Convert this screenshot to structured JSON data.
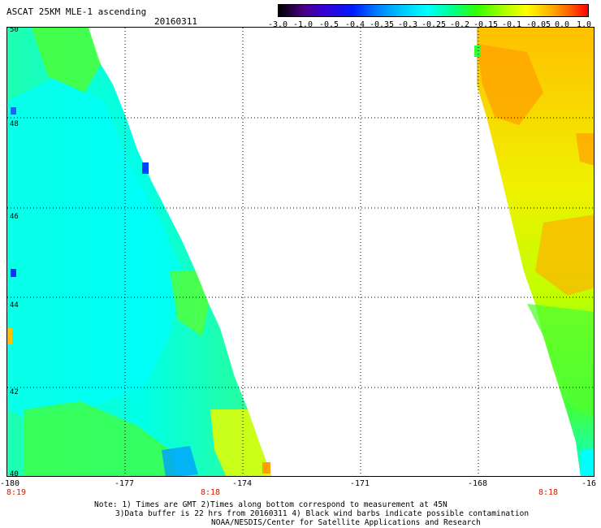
{
  "header": {
    "title": "ASCAT 25KM MLE-1 ascending",
    "date": "20160311"
  },
  "colorbar": {
    "labels": [
      "-3.0",
      "-1.0",
      "-0.5",
      "-0.4",
      "-0.35",
      "-0.3",
      "-0.25",
      "-0.2",
      "-0.15",
      "-0.1",
      "-0.05",
      "0.0",
      "1.0"
    ]
  },
  "axes": {
    "lat_labels": [
      "50",
      "48",
      "46",
      "44",
      "42",
      "40"
    ],
    "lon_labels": [
      "-180",
      "-177",
      "-174",
      "-171",
      "-168",
      "-16"
    ],
    "time_labels": [
      "8:19",
      "8:18",
      "8:18"
    ]
  },
  "notes": {
    "line1": "Note: 1) Times are GMT 2)Times along bottom correspond to measurement at 45N",
    "line2": "3)Data buffer is 22 hrs from 20160311 4) Black wind barbs indicate possible contamination",
    "line3": "NOAA/NESDIS/Center for Satellite Applications and Research"
  },
  "colors": {
    "swath_cyan": "#00ffe0",
    "swath_green": "#40ff40",
    "swath_yellow": "#f0ff00",
    "swath_orange": "#ffb000"
  }
}
